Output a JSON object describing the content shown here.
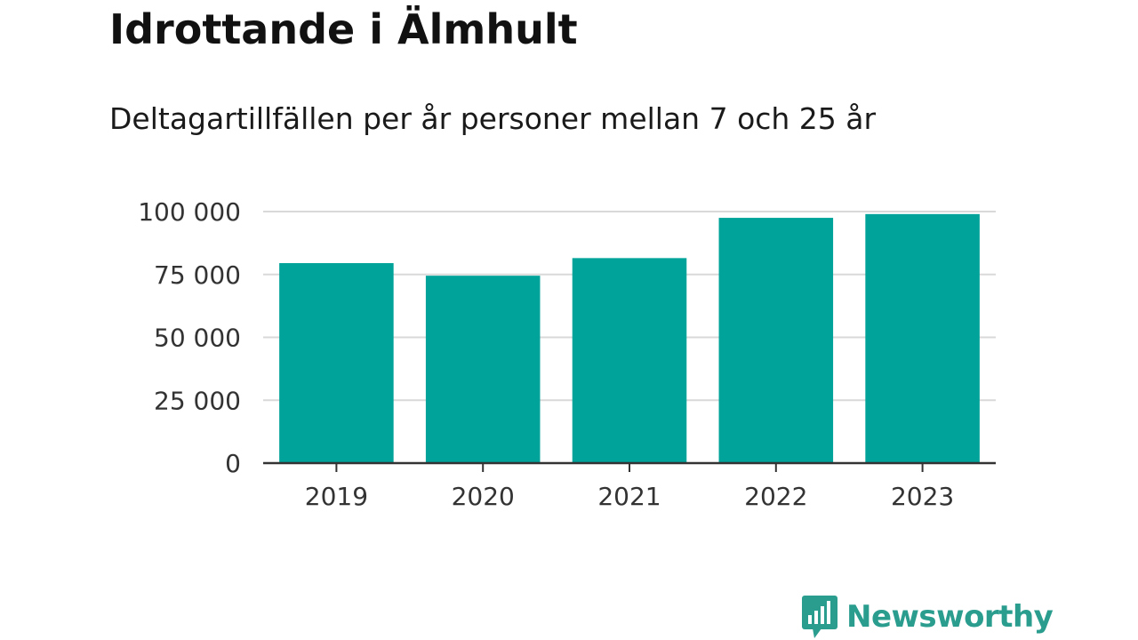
{
  "chart_data": {
    "type": "bar",
    "title": "Idrottande i Älmhult",
    "subtitle": "Deltagartillfällen per år personer mellan 7 och 25 år",
    "categories": [
      "2019",
      "2020",
      "2021",
      "2022",
      "2023"
    ],
    "values": [
      79500,
      74500,
      81500,
      97500,
      99000
    ],
    "ylim": [
      0,
      100000
    ],
    "yticks": [
      0,
      25000,
      50000,
      75000,
      100000
    ],
    "ytick_labels": [
      "0",
      "25 000",
      "50 000",
      "75 000",
      "100 000"
    ],
    "grid": true,
    "bar_color": "#00a39a"
  },
  "brand": {
    "name": "Newsworthy",
    "color": "#2a9d8f",
    "icon": "bar-chart-speech-bubble-icon"
  }
}
